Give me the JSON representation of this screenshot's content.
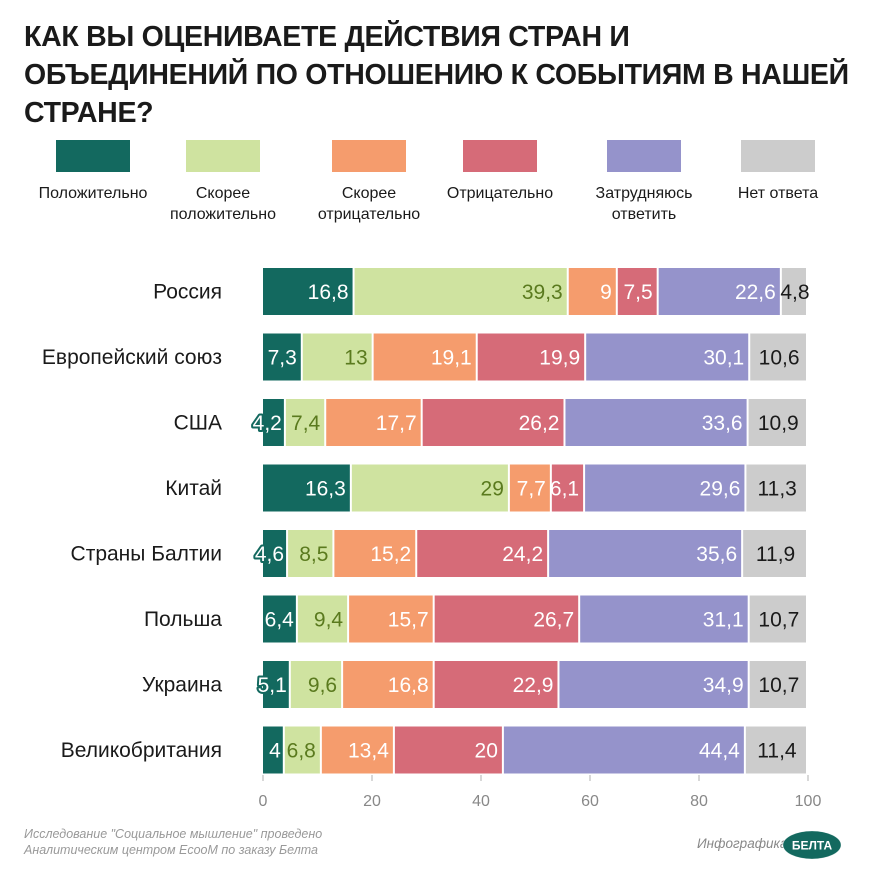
{
  "title": "КАК ВЫ ОЦЕНИВАЕТЕ ДЕЙСТВИЯ СТРАН И ОБЪЕДИНЕНИЙ ПО ОТНОШЕНИЮ К СОБЫТИЯМ В НАШЕЙ СТРАНЕ?",
  "colors": {
    "positive": "#13695f",
    "rather_positive": "#cfe3a0",
    "rather_negative": "#f59c6d",
    "negative": "#d66b78",
    "hard_to_say": "#9593cb",
    "no_answer": "#cccccc"
  },
  "chart_data": {
    "type": "bar",
    "orientation": "horizontal",
    "stacked": true,
    "categories": [
      "Россия",
      "Европейский союз",
      "США",
      "Китай",
      "Страны Балтии",
      "Польша",
      "Украина",
      "Великобритания"
    ],
    "series": [
      {
        "name": "Положительно",
        "values": [
          16.8,
          7.3,
          4.2,
          16.3,
          4.6,
          6.4,
          5.1,
          4
        ],
        "labels": [
          "16,8",
          "7,3",
          "4,2",
          "16,3",
          "4,6",
          "6,4",
          "5,1",
          "4"
        ]
      },
      {
        "name": "Скорее положительно",
        "values": [
          39.3,
          13,
          7.4,
          29,
          8.5,
          9.4,
          9.6,
          6.8
        ],
        "labels": [
          "39,3",
          "13",
          "7,4",
          "29",
          "8,5",
          "9,4",
          "9,6",
          "6,8"
        ]
      },
      {
        "name": "Скорее отрицательно",
        "values": [
          9,
          19.1,
          17.7,
          7.7,
          15.2,
          15.7,
          16.8,
          13.4
        ],
        "labels": [
          "9",
          "19,1",
          "17,7",
          "7,7",
          "15,2",
          "15,7",
          "16,8",
          "13,4"
        ]
      },
      {
        "name": "Отрицательно",
        "values": [
          7.5,
          19.9,
          26.2,
          6.1,
          24.2,
          26.7,
          22.9,
          20
        ],
        "labels": [
          "7,5",
          "19,9",
          "26,2",
          "6,1",
          "24,2",
          "26,7",
          "22,9",
          "20"
        ]
      },
      {
        "name": "Затрудняюсь ответить",
        "values": [
          22.6,
          30.1,
          33.6,
          29.6,
          35.6,
          31.1,
          34.9,
          44.4
        ],
        "labels": [
          "22,6",
          "30,1",
          "33,6",
          "29,6",
          "35,6",
          "31,1",
          "34,9",
          "44,4"
        ]
      },
      {
        "name": "Нет ответа",
        "values": [
          4.8,
          10.6,
          10.9,
          11.3,
          11.9,
          10.7,
          10.7,
          11.4
        ],
        "labels": [
          "4,8",
          "10,6",
          "10,9",
          "11,3",
          "11,9",
          "10,7",
          "10,7",
          "11,4"
        ]
      }
    ],
    "xlim": [
      0,
      100
    ],
    "xticks": [
      "0",
      "20",
      "40",
      "60",
      "80",
      "100"
    ],
    "legend_position": "top",
    "grid": false
  },
  "legend": [
    {
      "lines": [
        "Положительно"
      ],
      "color_key": "positive"
    },
    {
      "lines": [
        "Скорее",
        "положительно"
      ],
      "color_key": "rather_positive"
    },
    {
      "lines": [
        "Скорее",
        "отрицательно"
      ],
      "color_key": "rather_negative"
    },
    {
      "lines": [
        "Отрицательно"
      ],
      "color_key": "negative"
    },
    {
      "lines": [
        "Затрудняюсь",
        "ответить"
      ],
      "color_key": "hard_to_say"
    },
    {
      "lines": [
        "Нет ответа"
      ],
      "color_key": "no_answer"
    }
  ],
  "footer": {
    "source_line1": "Исследование \"Социальное мышление\" проведено",
    "source_line2": "Аналитическим центром EcooM по заказу Белта",
    "credit": "Инфографика",
    "logo_text": "БЕЛТА"
  }
}
